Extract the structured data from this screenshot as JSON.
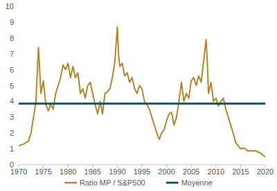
{
  "chart_data": {
    "type": "line",
    "x": [
      1970,
      1971,
      1972,
      1972.5,
      1973,
      1973.5,
      1974,
      1974.25,
      1974.5,
      1975,
      1975.5,
      1976,
      1976.5,
      1977,
      1977.5,
      1978,
      1978.5,
      1979,
      1979.5,
      1980,
      1980.5,
      1981,
      1981.5,
      1982,
      1982.5,
      1983,
      1983.5,
      1984,
      1984.5,
      1985,
      1985.5,
      1986,
      1986.5,
      1987,
      1987.5,
      1988,
      1988.5,
      1989,
      1989.5,
      1990,
      1990.25,
      1990.5,
      1991,
      1991.5,
      1992,
      1992.5,
      1993,
      1993.5,
      1994,
      1994.5,
      1995,
      1995.5,
      1996,
      1996.5,
      1997,
      1997.5,
      1998,
      1998.5,
      1999,
      1999.5,
      2000,
      2000.5,
      2001,
      2001.5,
      2002,
      2002.5,
      2003,
      2003.5,
      2004,
      2004.5,
      2005,
      2005.5,
      2006,
      2006.5,
      2007,
      2007.5,
      2008,
      2008.25,
      2008.5,
      2009,
      2009.5,
      2010,
      2010.5,
      2011,
      2011.5,
      2012,
      2012.5,
      2013,
      2013.5,
      2014,
      2014.5,
      2015,
      2015.5,
      2016,
      2016.5,
      2017,
      2017.5,
      2018,
      2018.5,
      2019,
      2019.5,
      2020
    ],
    "series": [
      {
        "name": "Ratio MP / S&P500",
        "color": "#b5852a",
        "values": [
          1.2,
          1.3,
          1.5,
          2.0,
          3.0,
          4.0,
          7.4,
          6.0,
          4.5,
          5.3,
          3.8,
          3.4,
          3.8,
          3.5,
          4.5,
          5.0,
          5.5,
          6.3,
          6.0,
          6.4,
          5.5,
          6.2,
          5.5,
          5.8,
          4.5,
          4.8,
          4.2,
          5.0,
          5.2,
          4.5,
          3.8,
          3.2,
          4.0,
          3.2,
          4.5,
          4.6,
          4.8,
          5.5,
          6.5,
          8.7,
          7.0,
          6.2,
          6.4,
          5.6,
          5.8,
          5.2,
          5.5,
          4.8,
          4.5,
          5.0,
          4.8,
          4.0,
          3.8,
          3.5,
          3.0,
          2.5,
          2.0,
          1.6,
          2.0,
          2.2,
          2.8,
          3.2,
          3.3,
          2.5,
          3.0,
          4.0,
          5.2,
          4.0,
          4.5,
          4.2,
          5.3,
          5.5,
          5.0,
          5.6,
          5.2,
          6.5,
          7.9,
          6.5,
          4.5,
          5.2,
          4.0,
          4.2,
          3.7,
          4.0,
          4.2,
          3.5,
          3.0,
          2.5,
          2.0,
          1.4,
          1.2,
          1.0,
          1.05,
          1.0,
          0.85,
          0.9,
          0.85,
          0.9,
          0.8,
          0.75,
          0.6,
          0.5
        ]
      },
      {
        "name": "Moyenne",
        "color": "#1f4e5f",
        "x": [
          1970,
          2020
        ],
        "values": [
          3.85,
          3.85
        ]
      }
    ],
    "xlim": [
      1970,
      2020
    ],
    "xticks": [
      1970,
      1975,
      1980,
      1985,
      1990,
      1995,
      2000,
      2005,
      2010,
      2015,
      2020
    ],
    "ylim": [
      0,
      10
    ],
    "yticks": [
      0,
      1,
      2,
      3,
      4,
      5,
      6,
      7,
      8,
      9,
      10
    ],
    "grid": false,
    "legend": "bottom"
  }
}
